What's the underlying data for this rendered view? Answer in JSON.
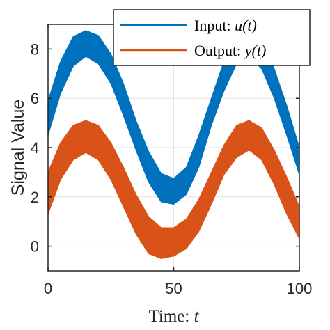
{
  "chart_data": {
    "type": "line",
    "title": "",
    "xlabel": "Time: ",
    "xlabel_var": "t",
    "ylabel": "Signal Value",
    "xlim": [
      0,
      100
    ],
    "ylim": [
      -1,
      9
    ],
    "xticks": [
      0,
      50,
      100
    ],
    "xtick_labels": [
      "0",
      "50",
      "100"
    ],
    "yticks": [
      0,
      2,
      4,
      6,
      8
    ],
    "ytick_labels": [
      "0",
      "2",
      "4",
      "6",
      "8"
    ],
    "grid": true,
    "legend_position": "top-right",
    "series": [
      {
        "name": "Input: ",
        "name_var": "u(t)",
        "color": "#0072BD",
        "style": "noisy band",
        "x": [
          0,
          5,
          10,
          15,
          20,
          25,
          30,
          35,
          40,
          45,
          50,
          55,
          60,
          65,
          70,
          75,
          80,
          85,
          90,
          95,
          100
        ],
        "upper": [
          5.9,
          7.5,
          8.5,
          8.75,
          8.55,
          7.8,
          6.6,
          5.1,
          3.85,
          2.95,
          2.75,
          3.2,
          4.5,
          6.0,
          7.5,
          8.5,
          8.8,
          8.4,
          7.2,
          5.7,
          4.0
        ],
        "lower": [
          4.5,
          6.2,
          7.3,
          7.7,
          7.4,
          6.6,
          5.3,
          3.9,
          2.6,
          1.8,
          1.7,
          2.1,
          3.2,
          4.9,
          6.3,
          7.4,
          7.7,
          7.2,
          6.0,
          4.5,
          2.9
        ]
      },
      {
        "name": "Output: ",
        "name_var": "y(t)",
        "color": "#D95319",
        "style": "noisy band",
        "x": [
          0,
          5,
          10,
          15,
          20,
          25,
          30,
          35,
          40,
          45,
          50,
          55,
          60,
          65,
          70,
          75,
          80,
          85,
          90,
          95,
          100
        ],
        "upper": [
          3.0,
          4.2,
          4.9,
          5.1,
          4.9,
          4.2,
          3.2,
          2.1,
          1.2,
          0.75,
          0.75,
          1.1,
          1.9,
          3.0,
          4.1,
          4.9,
          5.1,
          4.8,
          3.9,
          2.8,
          1.6
        ],
        "lower": [
          1.3,
          2.7,
          3.5,
          3.8,
          3.5,
          2.7,
          1.6,
          0.5,
          -0.3,
          -0.5,
          -0.4,
          -0.1,
          0.6,
          1.7,
          2.9,
          3.6,
          3.9,
          3.5,
          2.5,
          1.3,
          0.3
        ]
      }
    ]
  }
}
